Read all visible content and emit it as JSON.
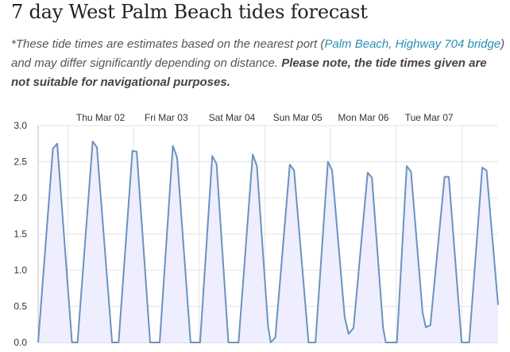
{
  "page": {
    "title": "7 day West Palm Beach tides forecast",
    "note_prefix": "*These tide times are estimates based on the nearest port (",
    "port_link": "Palm Beach, Highway 704 bridge",
    "note_middle": ") and may differ significantly depending on distance.",
    "note_warning": "Please note, the tide times given are not suitable for navigational purposes."
  },
  "chart_data": {
    "type": "area",
    "title": "",
    "xlabel": "",
    "ylabel": "",
    "ylim": [
      0,
      3
    ],
    "yticks": [
      "0.0",
      "0.5",
      "1.0",
      "1.5",
      "2.0",
      "2.5",
      "3.0"
    ],
    "categories": [
      "Thu Mar 02",
      "Fri Mar 03",
      "Sat Mar 04",
      "Sun Mar 05",
      "Mon Mar 06",
      "Tue Mar 07"
    ],
    "grid": true,
    "colors": {
      "line": "#6a93be",
      "fill": "#eeeeff",
      "grid": "#e3e3e3",
      "axis": "#c0c0c0"
    },
    "series": [
      {
        "values": [
          [
            0.0,
            0.0
          ],
          [
            0.45,
            2.68
          ],
          [
            0.58,
            2.75
          ],
          [
            1.03,
            0.0
          ],
          [
            1.2,
            0.0
          ],
          [
            1.66,
            2.78
          ],
          [
            1.79,
            2.7
          ],
          [
            2.25,
            0.0
          ],
          [
            2.45,
            0.0
          ],
          [
            2.87,
            2.65
          ],
          [
            3.0,
            2.64
          ],
          [
            3.41,
            0.0
          ],
          [
            3.7,
            0.0
          ],
          [
            4.1,
            2.72
          ],
          [
            4.23,
            2.56
          ],
          [
            4.64,
            0.0
          ],
          [
            4.93,
            0.0
          ],
          [
            5.3,
            2.58
          ],
          [
            5.43,
            2.47
          ],
          [
            5.79,
            0.0
          ],
          [
            6.1,
            0.0
          ],
          [
            6.53,
            2.6
          ],
          [
            6.66,
            2.44
          ],
          [
            7.0,
            0.22
          ],
          [
            7.08,
            0.0
          ],
          [
            7.22,
            0.07
          ],
          [
            7.66,
            2.46
          ],
          [
            7.79,
            2.38
          ],
          [
            8.23,
            0.0
          ],
          [
            8.44,
            0.0
          ],
          [
            8.82,
            2.5
          ],
          [
            8.95,
            2.38
          ],
          [
            9.33,
            0.35
          ],
          [
            9.45,
            0.12
          ],
          [
            9.6,
            0.2
          ],
          [
            10.03,
            2.35
          ],
          [
            10.16,
            2.28
          ],
          [
            10.5,
            0.2
          ],
          [
            10.58,
            0.0
          ],
          [
            10.92,
            0.0
          ],
          [
            11.22,
            2.44
          ],
          [
            11.35,
            2.36
          ],
          [
            11.7,
            0.42
          ],
          [
            11.8,
            0.21
          ],
          [
            11.94,
            0.24
          ],
          [
            12.37,
            2.29
          ],
          [
            12.5,
            2.29
          ],
          [
            12.89,
            0.0
          ],
          [
            13.12,
            0.0
          ],
          [
            13.52,
            2.42
          ],
          [
            13.65,
            2.38
          ],
          [
            14.0,
            0.52
          ]
        ]
      }
    ]
  }
}
